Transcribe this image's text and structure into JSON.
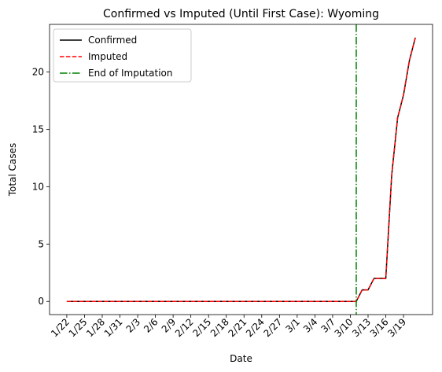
{
  "chart_data": {
    "type": "line",
    "title": "Confirmed vs Imputed (Until First Case): Wyoming",
    "xlabel": "Date",
    "ylabel": "Total Cases",
    "x": [
      "1/22",
      "1/23",
      "1/24",
      "1/25",
      "1/26",
      "1/27",
      "1/28",
      "1/29",
      "1/30",
      "1/31",
      "2/1",
      "2/2",
      "2/3",
      "2/4",
      "2/5",
      "2/6",
      "2/7",
      "2/8",
      "2/9",
      "2/10",
      "2/11",
      "2/12",
      "2/13",
      "2/14",
      "2/15",
      "2/16",
      "2/17",
      "2/18",
      "2/19",
      "2/20",
      "2/21",
      "2/22",
      "2/23",
      "2/24",
      "2/25",
      "2/26",
      "2/27",
      "2/28",
      "2/29",
      "3/1",
      "3/2",
      "3/3",
      "3/4",
      "3/5",
      "3/6",
      "3/7",
      "3/8",
      "3/9",
      "3/10",
      "3/11",
      "3/12",
      "3/13",
      "3/14",
      "3/15",
      "3/16",
      "3/17",
      "3/18",
      "3/19",
      "3/20",
      "3/21"
    ],
    "x_tick_labels": [
      "1/22",
      "1/25",
      "1/28",
      "1/31",
      "2/3",
      "2/6",
      "2/9",
      "2/12",
      "2/15",
      "2/18",
      "2/21",
      "2/24",
      "2/27",
      "3/1",
      "3/4",
      "3/7",
      "3/10",
      "3/13",
      "3/16",
      "3/19"
    ],
    "y_ticks": [
      0,
      5,
      10,
      15,
      20
    ],
    "ylim": [
      -1.15,
      24.15
    ],
    "grid": false,
    "legend_position": "top-left",
    "series": [
      {
        "name": "Confirmed",
        "color": "#000000",
        "style": "solid",
        "values": [
          0,
          0,
          0,
          0,
          0,
          0,
          0,
          0,
          0,
          0,
          0,
          0,
          0,
          0,
          0,
          0,
          0,
          0,
          0,
          0,
          0,
          0,
          0,
          0,
          0,
          0,
          0,
          0,
          0,
          0,
          0,
          0,
          0,
          0,
          0,
          0,
          0,
          0,
          0,
          0,
          0,
          0,
          0,
          0,
          0,
          0,
          0,
          0,
          0,
          0,
          1,
          1,
          2,
          2,
          2,
          11,
          16,
          18,
          21,
          23
        ]
      },
      {
        "name": "Imputed",
        "color": "#ff0000",
        "style": "dashed",
        "values": [
          0,
          0,
          0,
          0,
          0,
          0,
          0,
          0,
          0,
          0,
          0,
          0,
          0,
          0,
          0,
          0,
          0,
          0,
          0,
          0,
          0,
          0,
          0,
          0,
          0,
          0,
          0,
          0,
          0,
          0,
          0,
          0,
          0,
          0,
          0,
          0,
          0,
          0,
          0,
          0,
          0,
          0,
          0,
          0,
          0,
          0,
          0,
          0,
          0,
          0,
          1,
          1,
          2,
          2,
          2,
          11,
          16,
          18,
          21,
          23
        ]
      }
    ],
    "vline": {
      "name": "End of Imputation",
      "x": "3/11",
      "color": "#008000",
      "style": "dashdot"
    }
  }
}
